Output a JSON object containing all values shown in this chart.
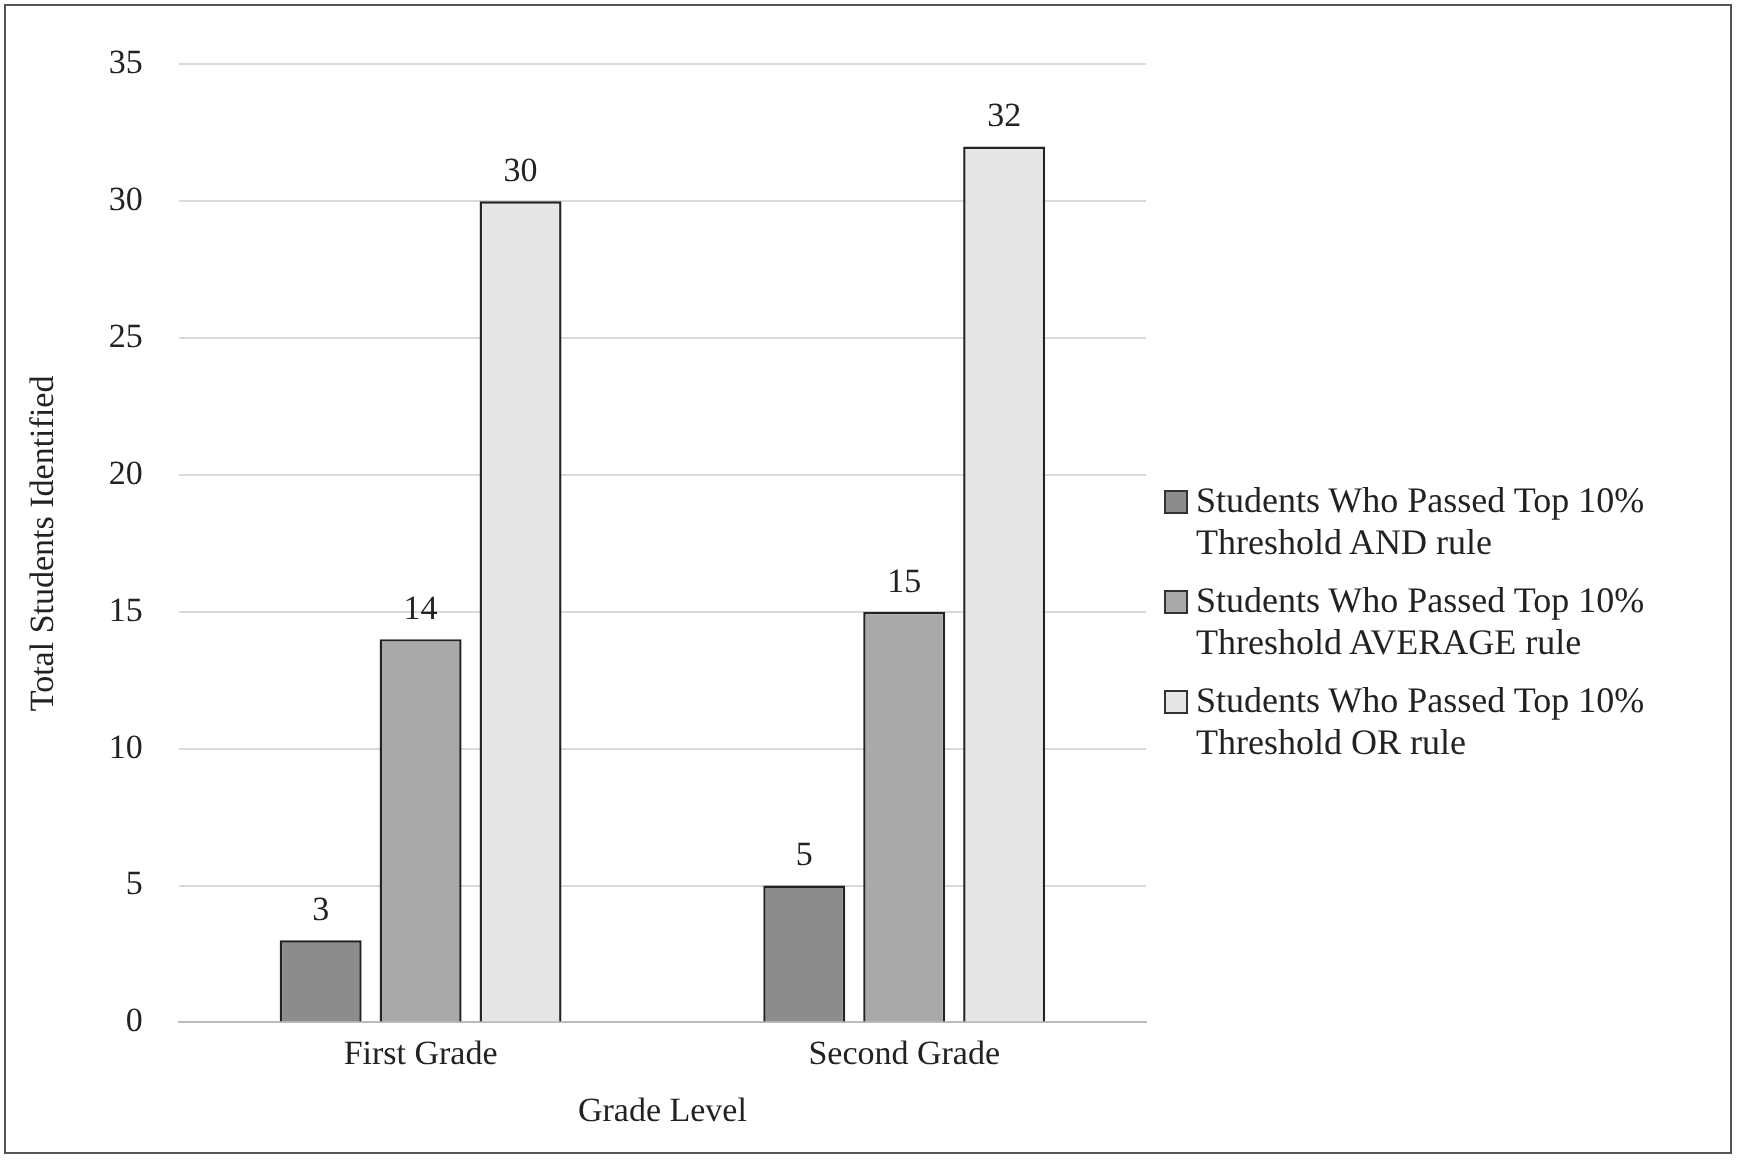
{
  "chart_data": {
    "type": "bar",
    "xlabel": "Grade Level",
    "ylabel": "Total Students Identified",
    "categories": [
      "First Grade",
      "Second Grade"
    ],
    "series": [
      {
        "name": "Students Who Passed Top 10% Threshold AND rule",
        "color": "#8c8c8c",
        "values": [
          3,
          5
        ]
      },
      {
        "name": "Students Who Passed Top 10% Threshold AVERAGE rule",
        "color": "#a9a9a9",
        "values": [
          14,
          15
        ]
      },
      {
        "name": "Students Who Passed Top 10% Threshold OR rule",
        "color": "#e6e6e6",
        "values": [
          30,
          32
        ]
      }
    ],
    "ylim": [
      0,
      35
    ],
    "yticks": [
      0,
      5,
      10,
      15,
      20,
      25,
      30,
      35
    ],
    "grid": "y",
    "legend": "right",
    "data_labels": true
  }
}
